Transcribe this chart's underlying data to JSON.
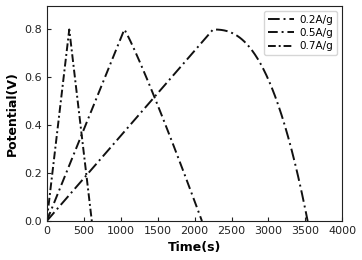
{
  "title": "",
  "xlabel": "Time(s)",
  "ylabel": "Potential(V)",
  "xlim": [
    0,
    4000
  ],
  "ylim": [
    0.0,
    0.9
  ],
  "xticks": [
    0,
    500,
    1000,
    1500,
    2000,
    2500,
    3000,
    3500,
    4000
  ],
  "yticks": [
    0.0,
    0.2,
    0.4,
    0.6,
    0.8
  ],
  "v_max": 0.8,
  "v_min": 0.0,
  "background_color": "#ffffff",
  "legend_loc": "upper right",
  "series": [
    {
      "label": "0.2A/g",
      "charge_time": 2250,
      "discharge_time": 1280,
      "discharge_exp": 2.5,
      "linestyle": "-.",
      "linewidth": 1.4,
      "color": "#111111",
      "dashes": [
        6,
        2,
        1,
        2
      ]
    },
    {
      "label": "0.5A/g",
      "charge_time": 1050,
      "discharge_time": 1050,
      "discharge_exp": 1.1,
      "linestyle": "-.",
      "linewidth": 1.4,
      "color": "#111111",
      "dashes": [
        5,
        2,
        1,
        2
      ]
    },
    {
      "label": "0.7A/g",
      "charge_time": 305,
      "discharge_time": 305,
      "discharge_exp": 1.0,
      "linestyle": "-.",
      "linewidth": 1.4,
      "color": "#111111",
      "dashes": [
        4,
        1.5,
        1,
        1.5
      ]
    }
  ]
}
